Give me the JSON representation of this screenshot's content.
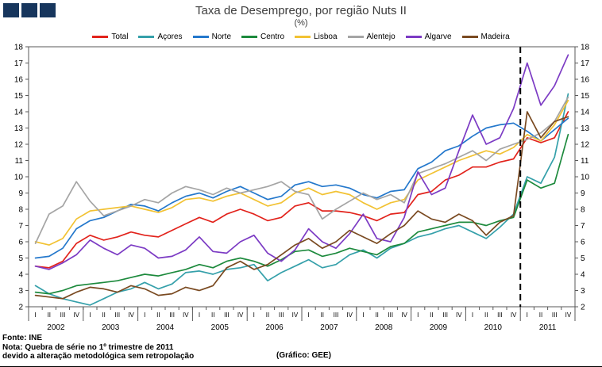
{
  "footer": {
    "fonte": "Fonte: INE",
    "nota1": "Nota: Quebra de série no 1º trimestre de 2011",
    "nota2": "devido a alteração metodológica sem retropolação",
    "grafico": "(Gráfico: GEE)"
  },
  "logo_color": "#17365d",
  "chart_data": {
    "type": "line",
    "title": "Taxa de Desemprego, por região Nuts II",
    "subtitle": "(%)",
    "ylim": [
      2,
      18
    ],
    "ytick_step": 1,
    "grid": false,
    "legend_position": "top",
    "years": [
      "2002",
      "2003",
      "2004",
      "2005",
      "2006",
      "2007",
      "2008",
      "2009",
      "2010",
      "2011"
    ],
    "quarter_labels": [
      "I",
      "II",
      "III",
      "IV"
    ],
    "break_before_index": 36,
    "series": [
      {
        "name": "Total",
        "color": "#e2231c",
        "values": [
          4.5,
          4.4,
          4.8,
          5.9,
          6.4,
          6.1,
          6.3,
          6.6,
          6.4,
          6.3,
          6.7,
          7.1,
          7.5,
          7.2,
          7.7,
          8.0,
          7.7,
          7.3,
          7.5,
          8.2,
          8.4,
          7.9,
          7.9,
          7.8,
          7.6,
          7.3,
          7.7,
          7.8,
          8.9,
          9.1,
          9.8,
          10.1,
          10.6,
          10.6,
          10.9,
          11.1,
          12.4,
          12.1,
          12.4,
          14.0
        ]
      },
      {
        "name": "Açores",
        "color": "#35a0aa",
        "values": [
          3.3,
          2.8,
          2.5,
          2.3,
          2.1,
          2.5,
          2.9,
          3.1,
          3.5,
          3.1,
          3.4,
          4.1,
          4.2,
          4.0,
          4.3,
          4.4,
          4.6,
          3.6,
          4.1,
          4.5,
          4.9,
          4.4,
          4.6,
          5.2,
          5.5,
          5.0,
          5.6,
          5.9,
          6.3,
          6.5,
          6.8,
          7.0,
          6.6,
          6.2,
          6.9,
          7.7,
          10.0,
          9.6,
          11.2,
          15.1
        ]
      },
      {
        "name": "Norte",
        "color": "#2478cc",
        "values": [
          5.0,
          5.1,
          5.6,
          6.8,
          7.3,
          7.5,
          7.9,
          8.3,
          8.2,
          7.9,
          8.4,
          8.8,
          9.0,
          8.7,
          9.1,
          9.4,
          9.0,
          8.6,
          8.8,
          9.5,
          9.7,
          9.4,
          9.5,
          9.3,
          8.9,
          8.7,
          9.1,
          9.2,
          10.5,
          10.9,
          11.6,
          11.9,
          12.5,
          13.0,
          13.2,
          13.3,
          12.8,
          12.2,
          12.9,
          13.6
        ]
      },
      {
        "name": "Centro",
        "color": "#1d8a3d",
        "values": [
          2.9,
          2.8,
          3.0,
          3.3,
          3.4,
          3.5,
          3.6,
          3.8,
          4.0,
          3.9,
          4.1,
          4.3,
          4.6,
          4.4,
          4.8,
          5.0,
          4.8,
          4.5,
          4.9,
          5.4,
          5.5,
          5.1,
          5.3,
          5.6,
          5.4,
          5.2,
          5.7,
          5.9,
          6.6,
          6.8,
          7.0,
          7.2,
          7.2,
          7.0,
          7.3,
          7.5,
          9.8,
          9.3,
          9.6,
          12.6
        ]
      },
      {
        "name": "Lisboa",
        "color": "#f2c233",
        "values": [
          6.0,
          5.8,
          6.2,
          7.4,
          7.9,
          8.0,
          8.1,
          8.2,
          8.0,
          7.8,
          8.1,
          8.6,
          8.7,
          8.5,
          8.8,
          9.0,
          8.6,
          8.2,
          8.4,
          9.0,
          9.3,
          8.9,
          9.1,
          8.9,
          8.4,
          8.0,
          8.4,
          8.6,
          9.8,
          10.2,
          10.6,
          11.0,
          11.3,
          11.6,
          11.4,
          11.8,
          12.6,
          12.2,
          13.2,
          14.7
        ]
      },
      {
        "name": "Alentejo",
        "color": "#a5a5a5",
        "values": [
          5.9,
          7.7,
          8.2,
          9.7,
          8.5,
          7.6,
          7.9,
          8.2,
          8.6,
          8.4,
          9.0,
          9.4,
          9.2,
          8.9,
          9.3,
          9.0,
          9.2,
          9.4,
          9.7,
          9.1,
          8.9,
          7.4,
          8.0,
          8.5,
          9.0,
          8.6,
          8.9,
          8.4,
          10.2,
          10.5,
          10.8,
          11.2,
          11.6,
          11.0,
          11.7,
          12.0,
          12.3,
          12.7,
          13.4,
          14.9
        ]
      },
      {
        "name": "Algarve",
        "color": "#7c3bc4",
        "values": [
          4.5,
          4.3,
          4.7,
          5.2,
          6.1,
          5.6,
          5.2,
          5.8,
          5.6,
          5.0,
          5.1,
          5.5,
          6.3,
          5.4,
          5.3,
          6.0,
          6.4,
          5.3,
          4.8,
          5.5,
          6.8,
          6.0,
          5.6,
          6.5,
          7.7,
          6.2,
          6.0,
          7.5,
          10.3,
          8.9,
          9.3,
          11.6,
          13.8,
          12.0,
          12.4,
          14.2,
          17.0,
          14.4,
          15.6,
          17.5
        ]
      },
      {
        "name": "Madeira",
        "color": "#7a4a21",
        "values": [
          2.7,
          2.6,
          2.5,
          2.9,
          3.2,
          3.1,
          2.9,
          3.3,
          3.1,
          2.7,
          2.8,
          3.2,
          3.0,
          3.3,
          4.4,
          4.8,
          4.3,
          4.6,
          5.2,
          5.8,
          6.2,
          5.6,
          6.0,
          6.7,
          6.3,
          5.9,
          6.5,
          7.0,
          7.9,
          7.4,
          7.2,
          7.7,
          7.3,
          6.4,
          7.2,
          7.6,
          14.0,
          12.4,
          13.4,
          13.7
        ]
      }
    ]
  }
}
